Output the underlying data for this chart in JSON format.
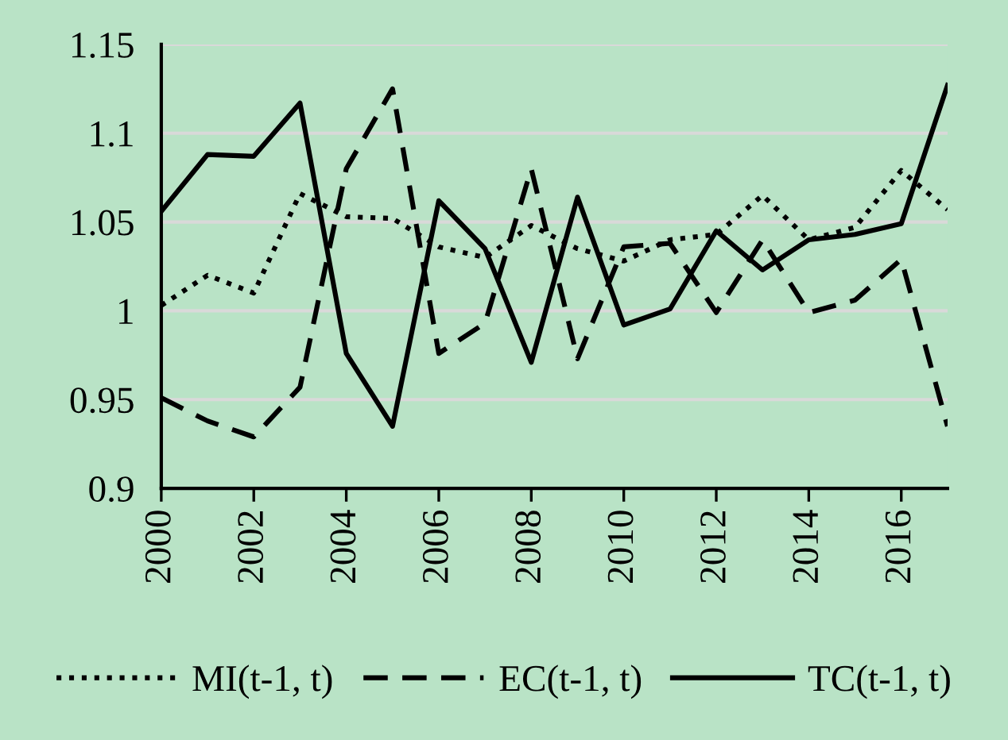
{
  "chart_data": {
    "type": "line",
    "x": [
      2000,
      2001,
      2002,
      2003,
      2004,
      2005,
      2006,
      2007,
      2008,
      2009,
      2010,
      2011,
      2012,
      2013,
      2014,
      2015,
      2016,
      2017
    ],
    "series": [
      {
        "name": "MI(t-1, t)",
        "color": "#000000",
        "line_style": "dotted",
        "values": [
          1.003,
          1.02,
          1.01,
          1.066,
          1.053,
          1.052,
          1.036,
          1.03,
          1.048,
          1.035,
          1.028,
          1.04,
          1.043,
          1.065,
          1.04,
          1.047,
          1.079,
          1.057
        ]
      },
      {
        "name": "EC(t-1, t)",
        "color": "#000000",
        "line_style": "dashed",
        "values": [
          0.951,
          0.938,
          0.929,
          0.957,
          1.08,
          1.125,
          0.976,
          0.993,
          1.08,
          0.973,
          1.036,
          1.038,
          0.999,
          1.04,
          0.999,
          1.006,
          1.029,
          0.935
        ]
      },
      {
        "name": "TC(t-1, t)",
        "color": "#000000",
        "line_style": "solid",
        "values": [
          1.056,
          1.088,
          1.087,
          1.117,
          0.976,
          0.935,
          1.062,
          1.035,
          0.971,
          1.064,
          0.992,
          1.001,
          1.045,
          1.023,
          1.04,
          1.043,
          1.049,
          1.127
        ]
      }
    ],
    "xlim": [
      2000,
      2017
    ],
    "xticks": [
      2000,
      2002,
      2004,
      2006,
      2008,
      2010,
      2012,
      2014,
      2016
    ],
    "ylim": [
      0.9,
      1.15
    ],
    "yticks": [
      0.9,
      0.95,
      1,
      1.05,
      1.1,
      1.15
    ],
    "grid": "y",
    "legend": "bottom",
    "marker": "none"
  }
}
